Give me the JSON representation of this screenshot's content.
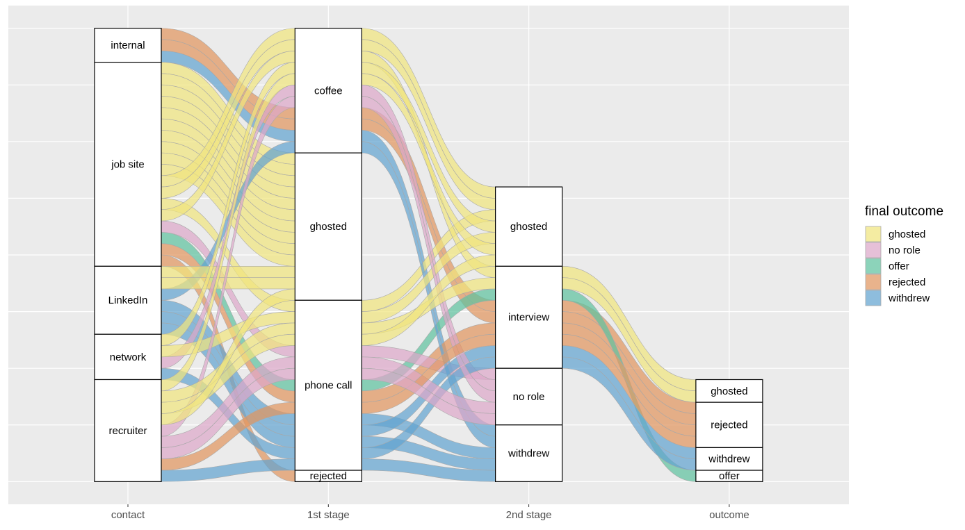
{
  "chart_data": {
    "type": "alluvial",
    "axes": [
      "contact",
      "1st stage",
      "2nd stage",
      "outcome"
    ],
    "strata": [
      [
        "internal",
        "job site",
        "LinkedIn",
        "network",
        "recruiter"
      ],
      [
        "coffee",
        "ghosted",
        "phone call",
        "rejected"
      ],
      [
        "ghosted",
        "interview",
        "no role",
        "withdrew"
      ],
      [
        "ghosted",
        "rejected",
        "withdrew",
        "offer"
      ]
    ],
    "legend": {
      "title": "final outcome",
      "levels": [
        {
          "name": "ghosted",
          "color": "#f0e47e"
        },
        {
          "name": "no role",
          "color": "#dca7c9"
        },
        {
          "name": "offer",
          "color": "#5fc29f"
        },
        {
          "name": "rejected",
          "color": "#e0965f"
        },
        {
          "name": "withdrew",
          "color": "#62a3d0"
        }
      ]
    },
    "ylim": [
      -2,
      42
    ],
    "yticks": [
      0,
      5,
      10,
      15,
      20,
      25,
      30,
      35,
      40
    ],
    "grid": true,
    "rows": [
      {
        "values": [
          "internal",
          "coffee",
          "interview",
          "rejected"
        ],
        "fill": "rejected",
        "n": 1
      },
      {
        "values": [
          "internal",
          "coffee",
          "interview",
          "rejected"
        ],
        "fill": "rejected",
        "n": 1
      },
      {
        "values": [
          "internal",
          "coffee",
          "withdrew",
          null
        ],
        "fill": "withdrew",
        "n": 1
      },
      {
        "values": [
          "job site",
          "ghosted",
          null,
          null
        ],
        "fill": "ghosted",
        "n": 1
      },
      {
        "values": [
          "job site",
          "ghosted",
          null,
          null
        ],
        "fill": "ghosted",
        "n": 1
      },
      {
        "values": [
          "job site",
          "ghosted",
          null,
          null
        ],
        "fill": "ghosted",
        "n": 1
      },
      {
        "values": [
          "job site",
          "ghosted",
          null,
          null
        ],
        "fill": "ghosted",
        "n": 1
      },
      {
        "values": [
          "job site",
          "ghosted",
          null,
          null
        ],
        "fill": "ghosted",
        "n": 1
      },
      {
        "values": [
          "job site",
          "ghosted",
          null,
          null
        ],
        "fill": "ghosted",
        "n": 1
      },
      {
        "values": [
          "job site",
          "ghosted",
          null,
          null
        ],
        "fill": "ghosted",
        "n": 1
      },
      {
        "values": [
          "job site",
          "ghosted",
          null,
          null
        ],
        "fill": "ghosted",
        "n": 1
      },
      {
        "values": [
          "job site",
          "ghosted",
          null,
          null
        ],
        "fill": "ghosted",
        "n": 1
      },
      {
        "values": [
          "job site",
          "ghosted",
          null,
          null
        ],
        "fill": "ghosted",
        "n": 1
      },
      {
        "values": [
          "job site",
          "phone call",
          "interview",
          "offer"
        ],
        "fill": "offer",
        "n": 1
      },
      {
        "values": [
          "job site",
          "phone call",
          "interview",
          "rejected"
        ],
        "fill": "rejected",
        "n": 1
      },
      {
        "values": [
          "job site",
          "phone call",
          "no role",
          null
        ],
        "fill": "no role",
        "n": 1
      },
      {
        "values": [
          "job site",
          "coffee",
          "ghosted",
          null
        ],
        "fill": "ghosted",
        "n": 1
      },
      {
        "values": [
          "job site",
          "coffee",
          "ghosted",
          null
        ],
        "fill": "ghosted",
        "n": 1
      },
      {
        "values": [
          "job site",
          "rejected",
          null,
          null
        ],
        "fill": "rejected",
        "n": 1
      },
      {
        "values": [
          "job site",
          "phone call",
          "ghosted",
          null
        ],
        "fill": "ghosted",
        "n": 1
      },
      {
        "values": [
          "job site",
          "coffee",
          "interview",
          "ghosted"
        ],
        "fill": "ghosted",
        "n": 1
      },
      {
        "values": [
          "LinkedIn",
          "coffee",
          "withdrew",
          null
        ],
        "fill": "withdrew",
        "n": 1
      },
      {
        "values": [
          "LinkedIn",
          "ghosted",
          null,
          null
        ],
        "fill": "ghosted",
        "n": 1
      },
      {
        "values": [
          "LinkedIn",
          "ghosted",
          null,
          null
        ],
        "fill": "ghosted",
        "n": 1
      },
      {
        "values": [
          "LinkedIn",
          "phone call",
          "withdrew",
          null
        ],
        "fill": "withdrew",
        "n": 1
      },
      {
        "values": [
          "LinkedIn",
          "phone call",
          "interview",
          "withdrew"
        ],
        "fill": "withdrew",
        "n": 1
      },
      {
        "values": [
          "LinkedIn",
          "phone call",
          "withdrew",
          null
        ],
        "fill": "withdrew",
        "n": 1
      },
      {
        "values": [
          "network",
          "coffee",
          "ghosted",
          null
        ],
        "fill": "ghosted",
        "n": 1
      },
      {
        "values": [
          "network",
          "coffee",
          "no role",
          null
        ],
        "fill": "no role",
        "n": 1
      },
      {
        "values": [
          "network",
          "phone call",
          "interview",
          "withdrew"
        ],
        "fill": "withdrew",
        "n": 1
      },
      {
        "values": [
          "network",
          "phone call",
          "ghosted",
          null
        ],
        "fill": "ghosted",
        "n": 1
      },
      {
        "values": [
          "recruiter",
          "coffee",
          "ghosted",
          null
        ],
        "fill": "ghosted",
        "n": 1
      },
      {
        "values": [
          "recruiter",
          "coffee",
          "no role",
          null
        ],
        "fill": "no role",
        "n": 1
      },
      {
        "values": [
          "recruiter",
          "phone call",
          "no role",
          null
        ],
        "fill": "no role",
        "n": 1
      },
      {
        "values": [
          "recruiter",
          "phone call",
          "interview",
          "ghosted"
        ],
        "fill": "ghosted",
        "n": 1
      },
      {
        "values": [
          "recruiter",
          "phone call",
          "interview",
          "rejected"
        ],
        "fill": "rejected",
        "n": 1
      },
      {
        "values": [
          "recruiter",
          "phone call",
          "ghosted",
          null
        ],
        "fill": "ghosted",
        "n": 1
      },
      {
        "values": [
          "recruiter",
          "ghosted",
          null,
          null
        ],
        "fill": "ghosted",
        "n": 1
      },
      {
        "values": [
          "recruiter",
          "phone call",
          "withdrew",
          null
        ],
        "fill": "withdrew",
        "n": 1
      },
      {
        "values": [
          "recruiter",
          "phone call",
          "no role",
          null
        ],
        "fill": "no role",
        "n": 1
      }
    ]
  }
}
